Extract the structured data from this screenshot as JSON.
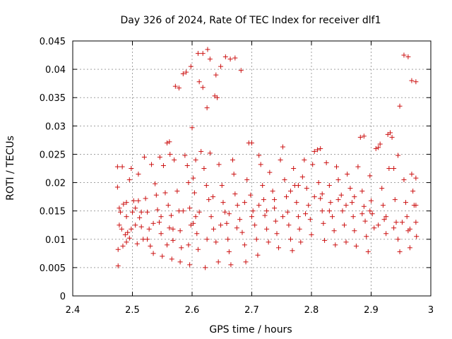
{
  "chart_data": {
    "type": "scatter",
    "title": "Day 326 of 2024, Rate Of TEC Index for receiver dlf1",
    "xlabel": "GPS time / hours",
    "ylabel": "ROTI / TECUs",
    "xlim": [
      2.4,
      3.0
    ],
    "ylim": [
      0,
      0.045
    ],
    "xticks": [
      "2.4",
      "2.5",
      "2.6",
      "2.7",
      "2.8",
      "2.9",
      "3"
    ],
    "yticks": [
      "0",
      "0.005",
      "0.01",
      "0.015",
      "0.02",
      "0.025",
      "0.03",
      "0.035",
      "0.04",
      "0.045"
    ],
    "grid": true,
    "marker": "plus",
    "color": "#cc1111",
    "points": [
      [
        2.475,
        0.0228
      ],
      [
        2.483,
        0.0228
      ],
      [
        2.475,
        0.0192
      ],
      [
        2.478,
        0.0155
      ],
      [
        2.48,
        0.0148
      ],
      [
        2.485,
        0.0162
      ],
      [
        2.49,
        0.0165
      ],
      [
        2.478,
        0.0125
      ],
      [
        2.482,
        0.0118
      ],
      [
        2.488,
        0.0108
      ],
      [
        2.492,
        0.0112
      ],
      [
        2.476,
        0.0082
      ],
      [
        2.484,
        0.0088
      ],
      [
        2.49,
        0.0095
      ],
      [
        2.476,
        0.0053
      ],
      [
        2.495,
        0.0102
      ],
      [
        2.498,
        0.0118
      ],
      [
        2.5,
        0.0148
      ],
      [
        2.502,
        0.0168
      ],
      [
        2.498,
        0.0225
      ],
      [
        2.495,
        0.0205
      ],
      [
        2.505,
        0.0155
      ],
      [
        2.51,
        0.0168
      ],
      [
        2.512,
        0.0138
      ],
      [
        2.515,
        0.0122
      ],
      [
        2.508,
        0.0092
      ],
      [
        2.518,
        0.01
      ],
      [
        2.51,
        0.0215
      ],
      [
        2.52,
        0.0245
      ],
      [
        2.522,
        0.0172
      ],
      [
        2.525,
        0.0148
      ],
      [
        2.528,
        0.0118
      ],
      [
        2.53,
        0.0088
      ],
      [
        2.535,
        0.0075
      ],
      [
        2.532,
        0.0232
      ],
      [
        2.538,
        0.0198
      ],
      [
        2.54,
        0.0178
      ],
      [
        2.542,
        0.0152
      ],
      [
        2.545,
        0.013
      ],
      [
        2.548,
        0.011
      ],
      [
        2.55,
        0.007
      ],
      [
        2.546,
        0.0245
      ],
      [
        2.552,
        0.023
      ],
      [
        2.555,
        0.0182
      ],
      [
        2.558,
        0.027
      ],
      [
        2.562,
        0.0272
      ],
      [
        2.56,
        0.016
      ],
      [
        2.565,
        0.0142
      ],
      [
        2.562,
        0.012
      ],
      [
        2.568,
        0.0098
      ],
      [
        2.566,
        0.0065
      ],
      [
        2.563,
        0.025
      ],
      [
        2.57,
        0.024
      ],
      [
        2.572,
        0.037
      ],
      [
        2.578,
        0.0367
      ],
      [
        2.575,
        0.0185
      ],
      [
        2.578,
        0.015
      ],
      [
        2.58,
        0.0115
      ],
      [
        2.582,
        0.0085
      ],
      [
        2.58,
        0.006
      ],
      [
        2.585,
        0.0392
      ],
      [
        2.59,
        0.0395
      ],
      [
        2.588,
        0.0248
      ],
      [
        2.592,
        0.023
      ],
      [
        2.594,
        0.02
      ],
      [
        2.596,
        0.0155
      ],
      [
        2.598,
        0.0125
      ],
      [
        2.594,
        0.009
      ],
      [
        2.596,
        0.0055
      ],
      [
        2.598,
        0.0405
      ],
      [
        2.6,
        0.0297
      ],
      [
        2.602,
        0.0208
      ],
      [
        2.604,
        0.0182
      ],
      [
        2.606,
        0.014
      ],
      [
        2.608,
        0.011
      ],
      [
        2.61,
        0.0082
      ],
      [
        2.606,
        0.024
      ],
      [
        2.61,
        0.0428
      ],
      [
        2.618,
        0.0428
      ],
      [
        2.626,
        0.0435
      ],
      [
        2.612,
        0.0378
      ],
      [
        2.618,
        0.0368
      ],
      [
        2.625,
        0.0332
      ],
      [
        2.63,
        0.0418
      ],
      [
        2.638,
        0.0353
      ],
      [
        2.642,
        0.035
      ],
      [
        2.64,
        0.039
      ],
      [
        2.648,
        0.0405
      ],
      [
        2.656,
        0.0422
      ],
      [
        2.664,
        0.0418
      ],
      [
        2.672,
        0.042
      ],
      [
        2.682,
        0.0398
      ],
      [
        2.615,
        0.0255
      ],
      [
        2.62,
        0.0225
      ],
      [
        2.624,
        0.0195
      ],
      [
        2.628,
        0.017
      ],
      [
        2.632,
        0.014
      ],
      [
        2.636,
        0.0118
      ],
      [
        2.64,
        0.0095
      ],
      [
        2.644,
        0.006
      ],
      [
        2.622,
        0.005
      ],
      [
        2.63,
        0.0252
      ],
      [
        2.645,
        0.0232
      ],
      [
        2.65,
        0.0195
      ],
      [
        2.652,
        0.0165
      ],
      [
        2.655,
        0.0148
      ],
      [
        2.658,
        0.0128
      ],
      [
        2.66,
        0.01
      ],
      [
        2.662,
        0.0078
      ],
      [
        2.665,
        0.0055
      ],
      [
        2.668,
        0.024
      ],
      [
        2.67,
        0.0215
      ],
      [
        2.672,
        0.018
      ],
      [
        2.676,
        0.016
      ],
      [
        2.68,
        0.0135
      ],
      [
        2.684,
        0.0112
      ],
      [
        2.688,
        0.009
      ],
      [
        2.69,
        0.006
      ],
      [
        2.692,
        0.0205
      ],
      [
        2.695,
        0.027
      ],
      [
        2.7,
        0.027
      ],
      [
        2.698,
        0.0178
      ],
      [
        2.702,
        0.015
      ],
      [
        2.705,
        0.0125
      ],
      [
        2.708,
        0.01
      ],
      [
        2.71,
        0.0072
      ],
      [
        2.712,
        0.0248
      ],
      [
        2.715,
        0.0232
      ],
      [
        2.718,
        0.0195
      ],
      [
        2.72,
        0.017
      ],
      [
        2.722,
        0.0142
      ],
      [
        2.725,
        0.0118
      ],
      [
        2.728,
        0.0095
      ],
      [
        2.73,
        0.0218
      ],
      [
        2.735,
        0.0185
      ],
      [
        2.738,
        0.0155
      ],
      [
        2.74,
        0.0132
      ],
      [
        2.742,
        0.011
      ],
      [
        2.745,
        0.0085
      ],
      [
        2.748,
        0.024
      ],
      [
        2.752,
        0.0263
      ],
      [
        2.755,
        0.0205
      ],
      [
        2.758,
        0.0175
      ],
      [
        2.76,
        0.0148
      ],
      [
        2.762,
        0.0125
      ],
      [
        2.765,
        0.01
      ],
      [
        2.768,
        0.008
      ],
      [
        2.77,
        0.0225
      ],
      [
        2.772,
        0.0195
      ],
      [
        2.775,
        0.0165
      ],
      [
        2.778,
        0.014
      ],
      [
        2.78,
        0.0118
      ],
      [
        2.782,
        0.0095
      ],
      [
        2.785,
        0.021
      ],
      [
        2.788,
        0.024
      ],
      [
        2.792,
        0.019
      ],
      [
        2.795,
        0.016
      ],
      [
        2.798,
        0.0135
      ],
      [
        2.8,
        0.0108
      ],
      [
        2.802,
        0.0232
      ],
      [
        2.805,
        0.0255
      ],
      [
        2.81,
        0.0258
      ],
      [
        2.815,
        0.026
      ],
      [
        2.812,
        0.02
      ],
      [
        2.815,
        0.0172
      ],
      [
        2.818,
        0.015
      ],
      [
        2.82,
        0.0128
      ],
      [
        2.822,
        0.0098
      ],
      [
        2.825,
        0.0235
      ],
      [
        2.83,
        0.0195
      ],
      [
        2.832,
        0.0165
      ],
      [
        2.835,
        0.014
      ],
      [
        2.838,
        0.0115
      ],
      [
        2.84,
        0.009
      ],
      [
        2.842,
        0.0228
      ],
      [
        2.845,
        0.0205
      ],
      [
        2.85,
        0.0178
      ],
      [
        2.852,
        0.015
      ],
      [
        2.855,
        0.0125
      ],
      [
        2.858,
        0.0095
      ],
      [
        2.86,
        0.0215
      ],
      [
        2.865,
        0.019
      ],
      [
        2.868,
        0.0165
      ],
      [
        2.87,
        0.014
      ],
      [
        2.872,
        0.0115
      ],
      [
        2.875,
        0.0088
      ],
      [
        2.878,
        0.0228
      ],
      [
        2.882,
        0.028
      ],
      [
        2.888,
        0.0282
      ],
      [
        2.885,
        0.0185
      ],
      [
        2.888,
        0.0158
      ],
      [
        2.89,
        0.0132
      ],
      [
        2.892,
        0.0105
      ],
      [
        2.895,
        0.0078
      ],
      [
        2.898,
        0.0212
      ],
      [
        2.9,
        0.0168
      ],
      [
        2.902,
        0.0145
      ],
      [
        2.905,
        0.012
      ],
      [
        2.908,
        0.026
      ],
      [
        2.912,
        0.0262
      ],
      [
        2.915,
        0.0268
      ],
      [
        2.918,
        0.019
      ],
      [
        2.92,
        0.016
      ],
      [
        2.922,
        0.0135
      ],
      [
        2.925,
        0.011
      ],
      [
        2.928,
        0.0285
      ],
      [
        2.932,
        0.0288
      ],
      [
        2.935,
        0.028
      ],
      [
        2.93,
        0.0225
      ],
      [
        2.938,
        0.0225
      ],
      [
        2.94,
        0.017
      ],
      [
        2.942,
        0.013
      ],
      [
        2.945,
        0.01
      ],
      [
        2.948,
        0.0078
      ],
      [
        2.945,
        0.0248
      ],
      [
        2.948,
        0.0335
      ],
      [
        2.955,
        0.0425
      ],
      [
        2.962,
        0.0422
      ],
      [
        2.968,
        0.038
      ],
      [
        2.975,
        0.0378
      ],
      [
        2.955,
        0.0205
      ],
      [
        2.958,
        0.0165
      ],
      [
        2.96,
        0.014
      ],
      [
        2.962,
        0.0115
      ],
      [
        2.965,
        0.0085
      ],
      [
        2.968,
        0.0215
      ],
      [
        2.97,
        0.0185
      ],
      [
        2.972,
        0.016
      ],
      [
        2.975,
        0.013
      ],
      [
        2.976,
        0.0105
      ],
      [
        2.975,
        0.0208
      ],
      [
        2.49,
        0.014
      ],
      [
        2.505,
        0.0125
      ],
      [
        2.515,
        0.0148
      ],
      [
        2.525,
        0.01
      ],
      [
        2.535,
        0.0128
      ],
      [
        2.548,
        0.014
      ],
      [
        2.558,
        0.009
      ],
      [
        2.568,
        0.0118
      ],
      [
        2.585,
        0.015
      ],
      [
        2.602,
        0.0128
      ],
      [
        2.612,
        0.0148
      ],
      [
        2.625,
        0.01
      ],
      [
        2.635,
        0.0175
      ],
      [
        2.648,
        0.0125
      ],
      [
        2.662,
        0.0145
      ],
      [
        2.675,
        0.012
      ],
      [
        2.688,
        0.0165
      ],
      [
        2.7,
        0.014
      ],
      [
        2.712,
        0.016
      ],
      [
        2.725,
        0.015
      ],
      [
        2.738,
        0.017
      ],
      [
        2.752,
        0.014
      ],
      [
        2.765,
        0.0185
      ],
      [
        2.778,
        0.0195
      ],
      [
        2.79,
        0.0145
      ],
      [
        2.805,
        0.0175
      ],
      [
        2.818,
        0.018
      ],
      [
        2.83,
        0.015
      ],
      [
        2.845,
        0.017
      ],
      [
        2.858,
        0.016
      ],
      [
        2.872,
        0.0175
      ],
      [
        2.885,
        0.0145
      ],
      [
        2.898,
        0.015
      ],
      [
        2.912,
        0.0125
      ],
      [
        2.925,
        0.014
      ],
      [
        2.938,
        0.012
      ],
      [
        2.952,
        0.013
      ],
      [
        2.965,
        0.0118
      ],
      [
        2.975,
        0.016
      ]
    ]
  }
}
